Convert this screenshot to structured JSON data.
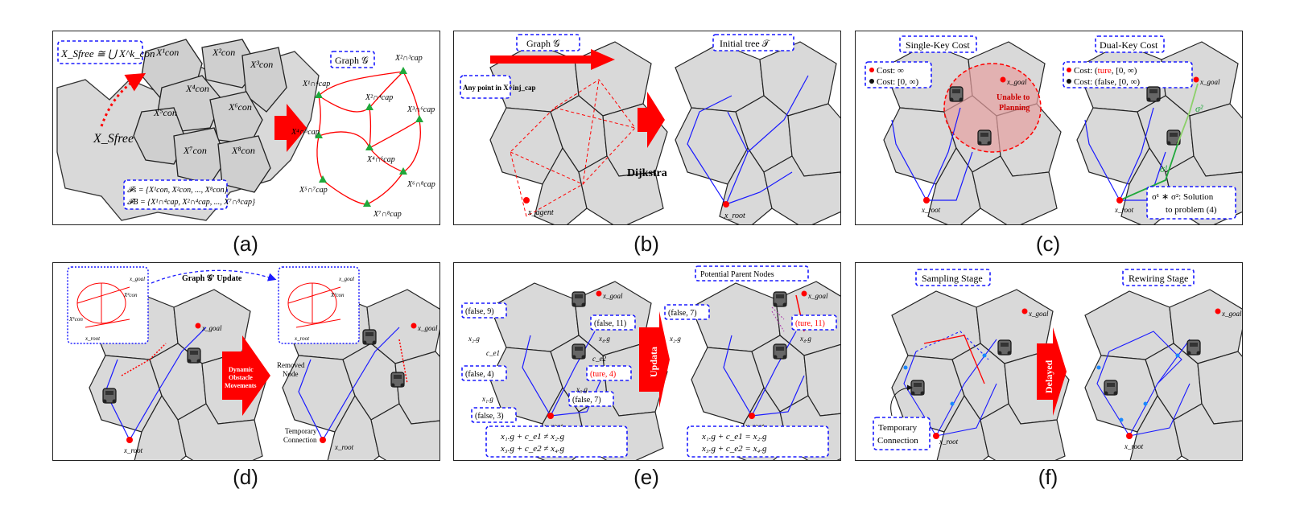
{
  "captions": [
    "(a)",
    "(b)",
    "(c)",
    "(d)",
    "(e)",
    "(f)"
  ],
  "a": {
    "union_formula": "X_Sfree ≅ ⋃ X^k_con",
    "union_upper": "8",
    "union_lower": "k=1",
    "xsfree_label": "X_Sfree",
    "cons": [
      "X¹con",
      "X²con",
      "X³con",
      "X⁴con",
      "X⁵con",
      "X⁶con",
      "X⁷con",
      "X⁸con"
    ],
    "graph_title": "Graph 𝒢",
    "caps": [
      "X²∩³cap",
      "X¹∩⁴cap",
      "X²∩⁴cap",
      "X³∩⁶cap",
      "X⁴∩⁵cap",
      "X⁴∩⁶cap",
      "X⁵∩⁷cap",
      "X⁶∩⁸cap",
      "X⁷∩⁸cap"
    ],
    "fs_line": "𝓕s = {X¹con, X²con, ..., X⁸con}",
    "fb_line": "𝓕B = {X¹∩⁴cap, X²∩⁴cap, ..., X⁷∩⁸cap}"
  },
  "b": {
    "graph_title": "Graph 𝒢",
    "tree_title": "Initial tree 𝒯",
    "any_point": "Any point in X^inj_cap",
    "dijkstra": "Dijkstra",
    "x_agent": "x_agent",
    "x_root": "x_root"
  },
  "c": {
    "single_title": "Single-Key Cost",
    "dual_title": "Dual-Key Cost",
    "cost_inf": "Cost: ∞",
    "cost_zero": "Cost: [0, ∞)",
    "cost_true_pre": "Cost: (",
    "cost_true_word": "ture",
    "cost_true_post": ", [0, ∞)",
    "cost_false": "Cost: (false, [0, ∞)",
    "unable_line1": "Unable to",
    "unable_line2": "Planning",
    "x_goal": "x_goal",
    "x_root": "x_root",
    "sigma1": "σ¹",
    "sigma2": "σ²",
    "solution_line1": "σ¹ ∗ σ²: Solution",
    "solution_line2": "to problem (4)"
  },
  "d": {
    "update_label": "Graph 𝒢' Update",
    "dynamic_line1": "Dynamic",
    "dynamic_line2": "Obstacle",
    "dynamic_line3": "Movements",
    "removed_line1": "Removed",
    "removed_line2": "Node",
    "temp_line1": "Temporary",
    "temp_line2": "Connection",
    "x_goal": "x_goal",
    "x_root": "x_root",
    "inset_x_goal": "x_goal",
    "inset_x_con2": "X²con",
    "inset_x_con5": "X⁵con",
    "inset_x_root": "x_root"
  },
  "e": {
    "potential_parent": "Potential Parent Nodes",
    "updata": "Updata",
    "left_boxes": [
      "(false,   9)",
      "(false,   11)",
      "(false,   4)",
      "(ture,   4)",
      "(false,   7)",
      "(false,   3)"
    ],
    "right_boxes": [
      "(false,   7)",
      "(ture,   11)"
    ],
    "eq_left_1": "x₁.g + c_e1 ≠ x₂.g",
    "eq_left_2": "x₃.g + c_e2 ≠ x₄.g",
    "eq_right_1": "x₁.g + c_e1 = x₂.g",
    "eq_right_2": "x₃.g + c_e2 = x₄.g",
    "x2g": "x₂.g",
    "x4g": "x₄.g",
    "x3g": "x₃.g",
    "x1g": "x₁.g",
    "ce1": "c_e1",
    "ce2": "c_e2",
    "x_goal": "x_goal",
    "x_root": "x_root"
  },
  "f": {
    "sampling_title": "Sampling Stage",
    "rewiring_title": "Rewiring Stage",
    "delayed": "Delayed",
    "temp_line1": "Temporary",
    "temp_line2": "Connection",
    "x_goal": "x_goal",
    "x_root": "x_root"
  },
  "colors": {
    "red": "#ff0000",
    "blue": "#1a1aff",
    "green": "#1fa83a",
    "region": "#d9d9d9"
  }
}
